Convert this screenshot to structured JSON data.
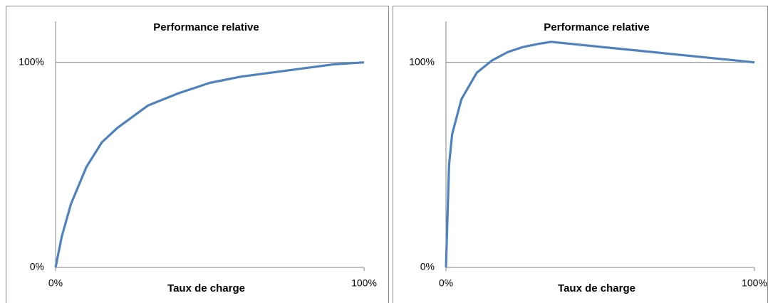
{
  "chart_data": [
    {
      "type": "line",
      "title": "Performance relative",
      "x_label": "Taux de charge",
      "series": [
        {
          "color": "#4f81bd",
          "x": [
            0,
            2,
            5,
            10,
            15,
            20,
            30,
            40,
            50,
            60,
            70,
            80,
            90,
            100
          ],
          "values": [
            0,
            15,
            31,
            49,
            61,
            68,
            79,
            85,
            90,
            93,
            95,
            97,
            99,
            100
          ]
        }
      ],
      "xlim": [
        0,
        100
      ],
      "ylim": [
        0,
        120
      ],
      "xticks": [
        {
          "value": 0,
          "label": "0%"
        },
        {
          "value": 100,
          "label": "100%"
        }
      ],
      "yticks": [
        {
          "value": 0,
          "label": "0%"
        },
        {
          "value": 100,
          "label": "100%"
        }
      ],
      "grid": true
    },
    {
      "type": "line",
      "title": "Performance relative",
      "x_label": "Taux de charge",
      "series": [
        {
          "color": "#4f81bd",
          "x": [
            0,
            1,
            2,
            5,
            10,
            15,
            20,
            25,
            30,
            34,
            100
          ],
          "values": [
            0,
            50,
            65,
            82,
            95,
            101,
            105,
            107.5,
            109,
            110,
            100
          ]
        }
      ],
      "xlim": [
        0,
        100
      ],
      "ylim": [
        0,
        120
      ],
      "xticks": [
        {
          "value": 0,
          "label": "0%"
        },
        {
          "value": 100,
          "label": "100%"
        }
      ],
      "yticks": [
        {
          "value": 0,
          "label": "0%"
        },
        {
          "value": 100,
          "label": "100%"
        }
      ],
      "grid": true
    }
  ]
}
